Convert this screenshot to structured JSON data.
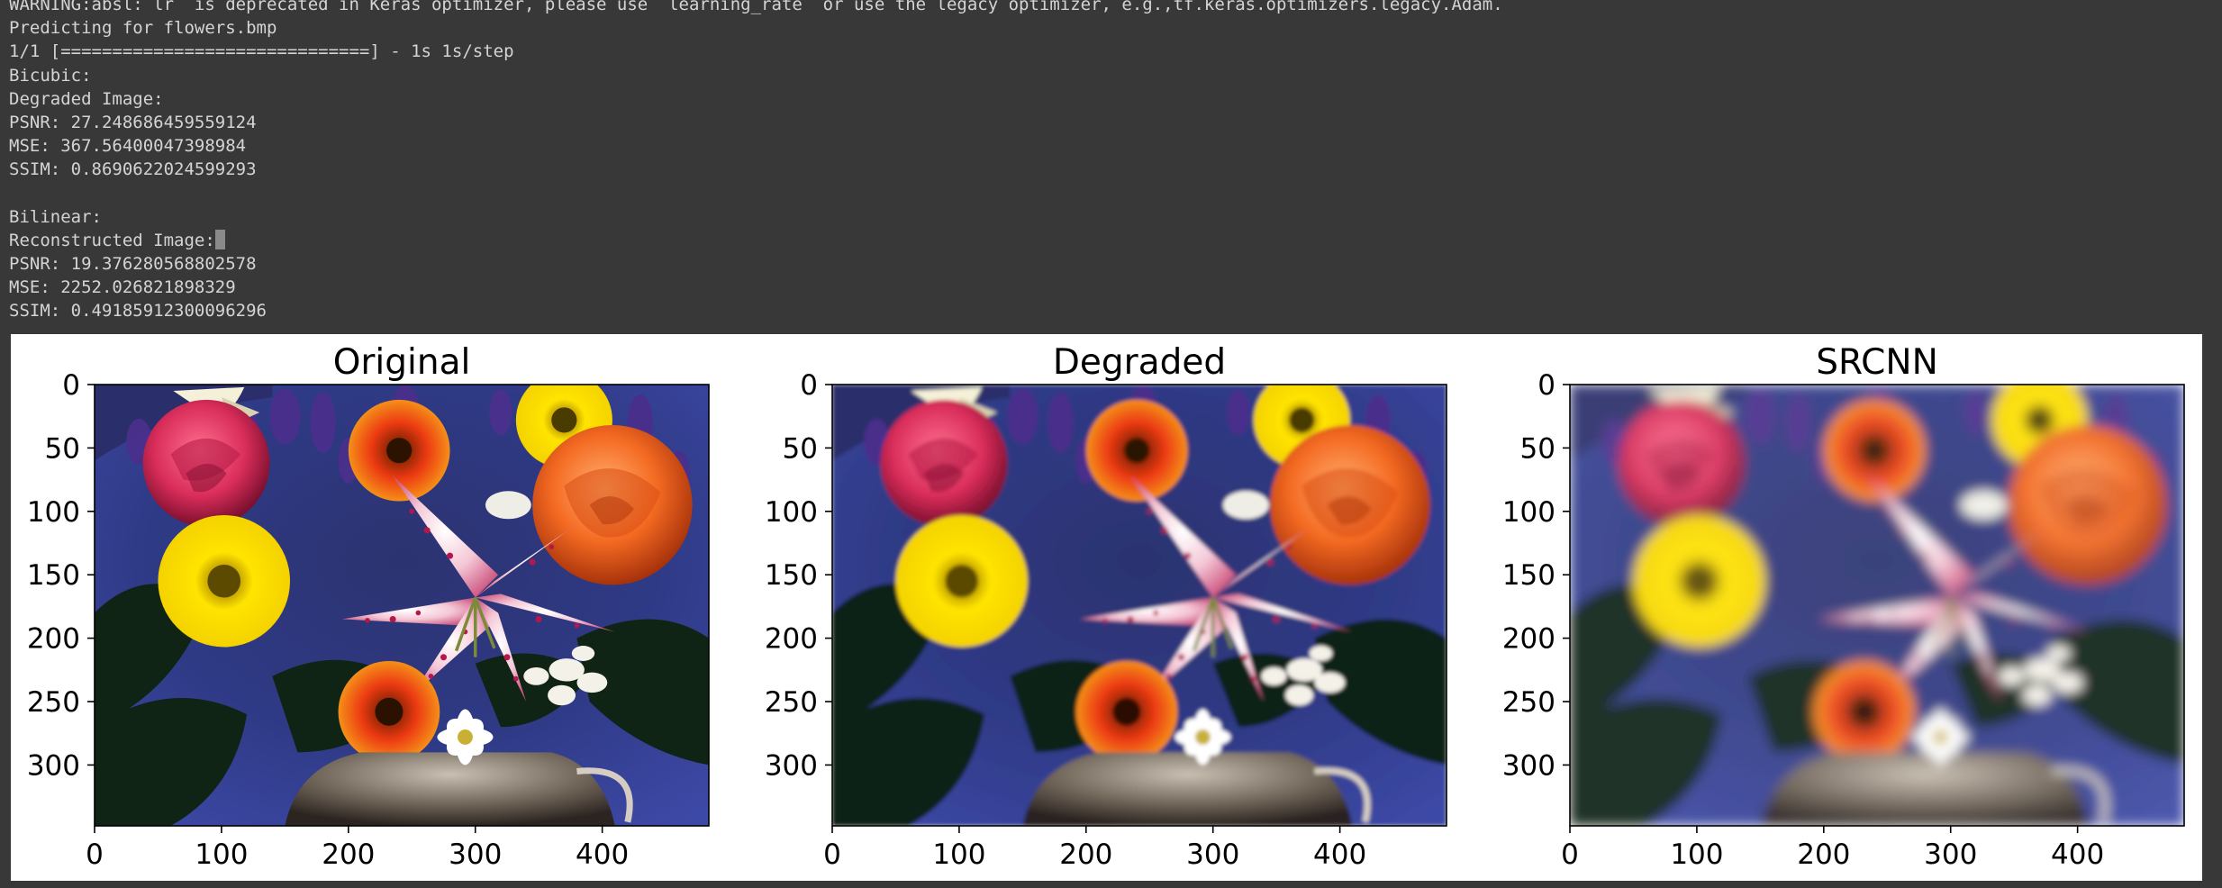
{
  "console": {
    "lines": [
      "WARNING:absl:`lr` is deprecated in Keras optimizer, please use `learning_rate` or use the legacy optimizer, e.g.,tf.keras.optimizers.legacy.Adam.",
      "Predicting for flowers.bmp",
      "1/1 [==============================] - 1s 1s/step",
      "Bicubic:",
      "Degraded Image:",
      "PSNR: 27.248686459559124",
      "MSE: 367.56400047398984",
      "SSIM: 0.8690622024599293",
      "",
      "Bilinear:",
      "Reconstructed Image:",
      "PSNR: 19.376280568802578",
      "MSE: 2252.026821898329",
      "SSIM: 0.49185912300096296"
    ]
  },
  "figure": {
    "panels": [
      {
        "title": "Original",
        "variant": "sharp"
      },
      {
        "title": "Degraded",
        "variant": "soft"
      },
      {
        "title": "SRCNN",
        "variant": "blurred"
      }
    ],
    "xticks": [
      "0",
      "100",
      "200",
      "300",
      "400"
    ],
    "yticks": [
      "0",
      "50",
      "100",
      "150",
      "200",
      "250",
      "300"
    ],
    "x_range": [
      0,
      484
    ],
    "y_range": [
      0,
      348
    ]
  }
}
